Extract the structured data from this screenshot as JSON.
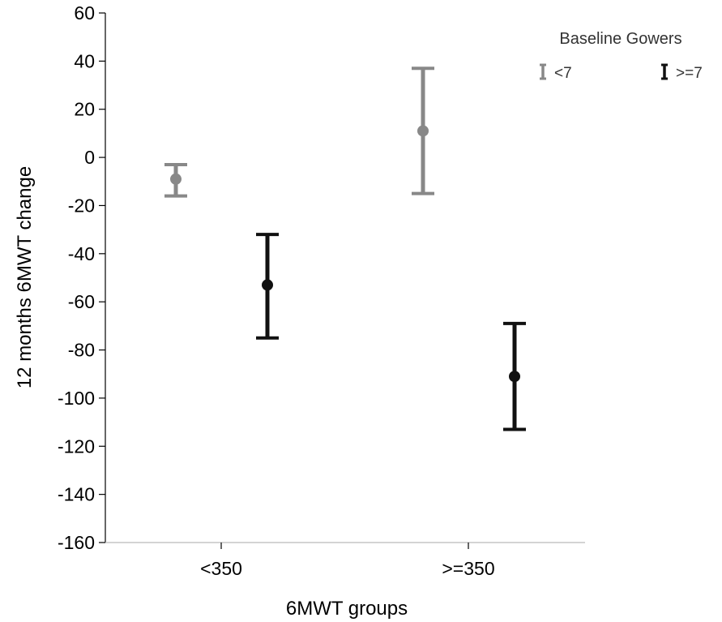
{
  "chart_data": {
    "type": "errorbar",
    "xlabel": "6MWT groups",
    "ylabel": "12 months 6MWT change",
    "categories": [
      "<350",
      ">=350"
    ],
    "ylim": [
      -160,
      60
    ],
    "yticks": [
      60,
      40,
      20,
      0,
      -20,
      -40,
      -60,
      -80,
      -100,
      -120,
      -140,
      -160
    ],
    "grid": false,
    "legend": {
      "title": "Baseline Gowers",
      "position": "top-right"
    },
    "series": [
      {
        "name": "<7",
        "color": "#888888",
        "points": [
          {
            "category": "<350",
            "mean": -9,
            "lower": -16,
            "upper": -3
          },
          {
            "category": ">=350",
            "mean": 11,
            "lower": -15,
            "upper": 37
          }
        ]
      },
      {
        "name": ">=7",
        "color": "#111111",
        "points": [
          {
            "category": "<350",
            "mean": -53,
            "lower": -75,
            "upper": -32
          },
          {
            "category": ">=350",
            "mean": -91,
            "lower": -113,
            "upper": -69
          }
        ]
      }
    ]
  }
}
